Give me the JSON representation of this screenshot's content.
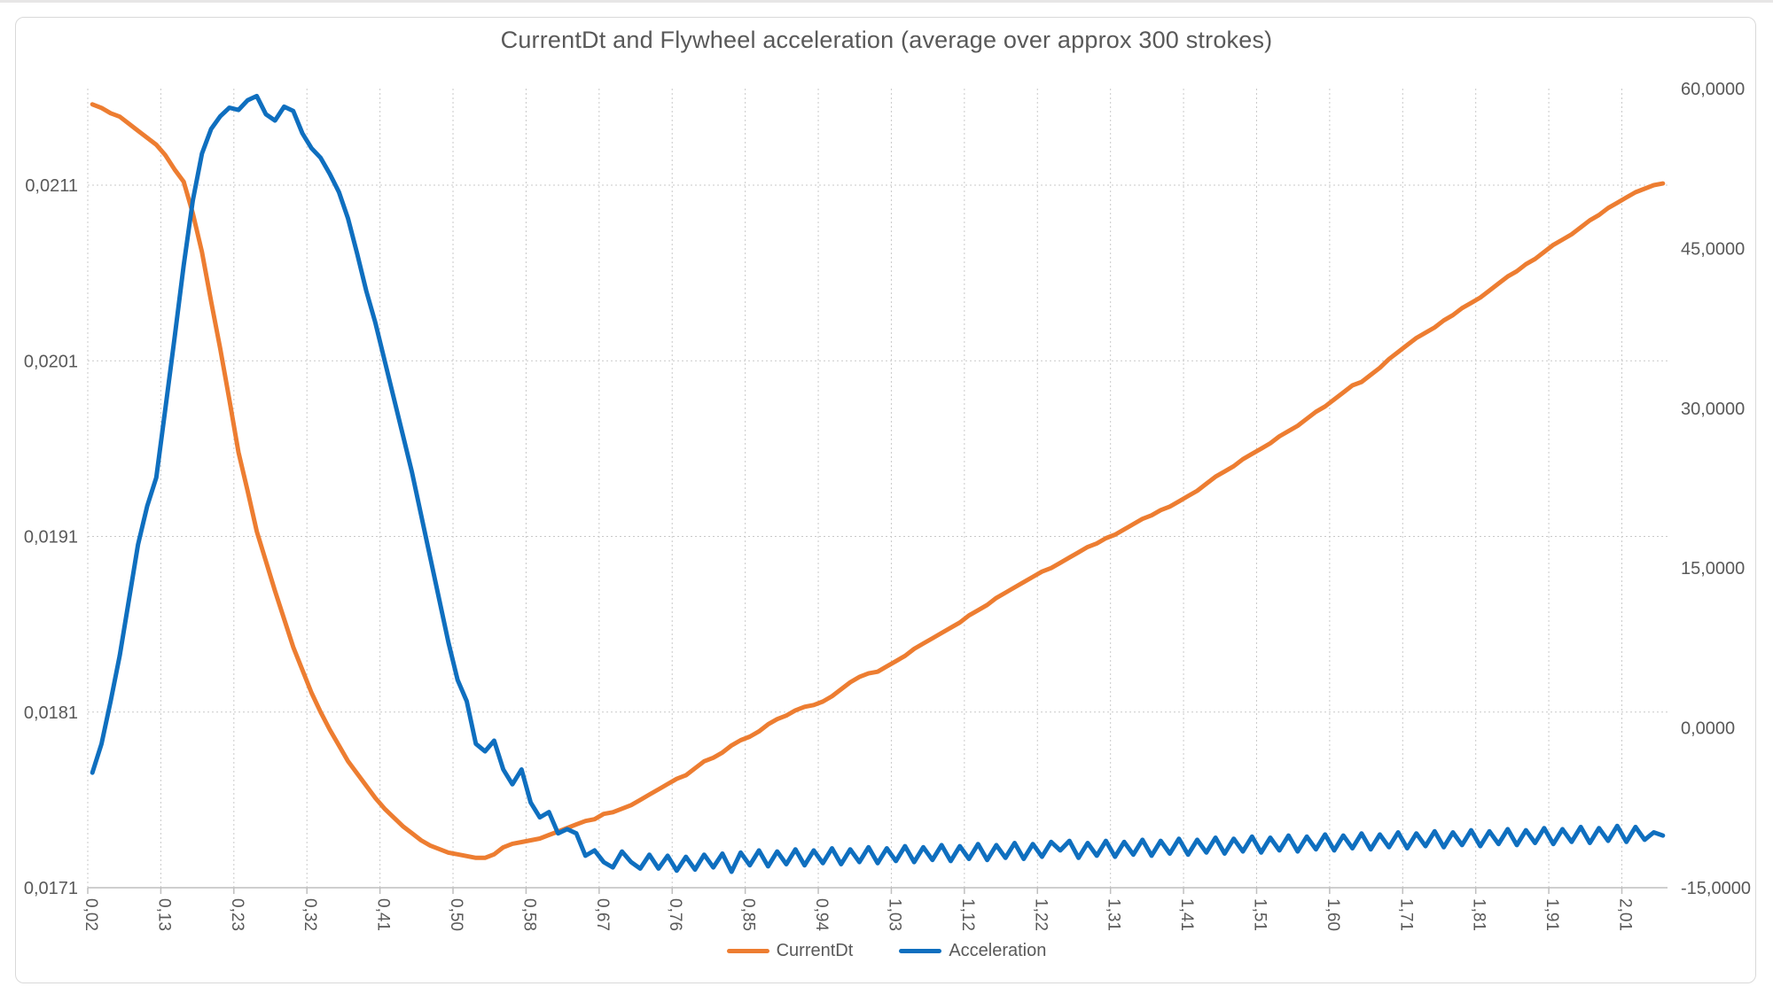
{
  "chart_data": {
    "type": "line",
    "title": "CurrentDt and Flywheel acceleration (average over approx 300 strokes)",
    "grid": "dotted",
    "legend_position": "bottom",
    "n_points": 173,
    "x_label_every_n_points": 8,
    "x_tick_labels": [
      "0,02",
      "0,13",
      "0,23",
      "0,32",
      "0,41",
      "0,50",
      "0,58",
      "0,67",
      "0,76",
      "0,85",
      "0,94",
      "1,03",
      "1,12",
      "1,22",
      "1,31",
      "1,41",
      "1,51",
      "1,60",
      "1,71",
      "1,81",
      "1,91",
      "2,01"
    ],
    "left_axis": {
      "min": 0.0171,
      "max": 0.02165,
      "major": 0.001,
      "tick_labels": [
        "0,0171",
        "0,0181",
        "0,0191",
        "0,0201",
        "0,0211"
      ]
    },
    "right_axis": {
      "min": -15,
      "max": 60,
      "major": 15,
      "tick_labels": [
        "-15,0000",
        "0,0000",
        "15,0000",
        "30,0000",
        "45,0000",
        "60,0000"
      ]
    },
    "series": [
      {
        "name": "CurrentDt",
        "axis": "left",
        "color": "#ED7D31",
        "values": [
          0.02156,
          0.02154,
          0.02151,
          0.02149,
          0.02145,
          0.02141,
          0.02137,
          0.02133,
          0.02127,
          0.02119,
          0.02112,
          0.02094,
          0.02072,
          0.02044,
          0.02017,
          0.01988,
          0.01958,
          0.01936,
          0.01913,
          0.01896,
          0.01879,
          0.01863,
          0.01847,
          0.01834,
          0.01821,
          0.0181,
          0.018,
          0.01791,
          0.01782,
          0.01775,
          0.01768,
          0.01761,
          0.01755,
          0.0175,
          0.01745,
          0.01741,
          0.01737,
          0.01734,
          0.01732,
          0.0173,
          0.01729,
          0.01728,
          0.01727,
          0.01727,
          0.01729,
          0.01733,
          0.01735,
          0.01736,
          0.01737,
          0.01738,
          0.0174,
          0.01742,
          0.01744,
          0.01746,
          0.01748,
          0.01749,
          0.01752,
          0.01753,
          0.01755,
          0.01757,
          0.0176,
          0.01763,
          0.01766,
          0.01769,
          0.01772,
          0.01774,
          0.01778,
          0.01782,
          0.01784,
          0.01787,
          0.01791,
          0.01794,
          0.01796,
          0.01799,
          0.01803,
          0.01806,
          0.01808,
          0.01811,
          0.01813,
          0.01814,
          0.01816,
          0.01819,
          0.01823,
          0.01827,
          0.0183,
          0.01832,
          0.01833,
          0.01836,
          0.01839,
          0.01842,
          0.01846,
          0.01849,
          0.01852,
          0.01855,
          0.01858,
          0.01861,
          0.01865,
          0.01868,
          0.01871,
          0.01875,
          0.01878,
          0.01881,
          0.01884,
          0.01887,
          0.0189,
          0.01892,
          0.01895,
          0.01898,
          0.01901,
          0.01904,
          0.01906,
          0.01909,
          0.01911,
          0.01914,
          0.01917,
          0.0192,
          0.01922,
          0.01925,
          0.01927,
          0.0193,
          0.01933,
          0.01936,
          0.0194,
          0.01944,
          0.01947,
          0.0195,
          0.01954,
          0.01957,
          0.0196,
          0.01963,
          0.01967,
          0.0197,
          0.01973,
          0.01977,
          0.01981,
          0.01984,
          0.01988,
          0.01992,
          0.01996,
          0.01998,
          0.02002,
          0.02006,
          0.02011,
          0.02015,
          0.02019,
          0.02023,
          0.02026,
          0.02029,
          0.02033,
          0.02036,
          0.0204,
          0.02043,
          0.02046,
          0.0205,
          0.02054,
          0.02058,
          0.02061,
          0.02065,
          0.02068,
          0.02072,
          0.02076,
          0.02079,
          0.02082,
          0.02086,
          0.0209,
          0.02093,
          0.02097,
          0.021,
          0.02103,
          0.02106,
          0.02108,
          0.0211,
          0.02111
        ]
      },
      {
        "name": "Acceleration",
        "axis": "right",
        "color": "#0F6FBF",
        "values": [
          -4.2,
          -1.5,
          2.5,
          6.8,
          12.0,
          17.2,
          20.8,
          23.5,
          30.0,
          36.6,
          43.4,
          49.5,
          53.9,
          56.2,
          57.4,
          58.2,
          58.0,
          58.9,
          59.3,
          57.6,
          57.0,
          58.3,
          57.9,
          55.8,
          54.4,
          53.5,
          52.0,
          50.3,
          47.8,
          44.5,
          41.0,
          38.0,
          34.5,
          31.0,
          27.5,
          24.0,
          20.0,
          16.0,
          12.0,
          8.0,
          4.5,
          2.5,
          -1.5,
          -2.2,
          -1.2,
          -3.9,
          -5.3,
          -3.9,
          -7.0,
          -8.4,
          -7.9,
          -9.9,
          -9.5,
          -9.9,
          -12.0,
          -11.5,
          -12.6,
          -13.1,
          -11.6,
          -12.6,
          -13.2,
          -11.9,
          -13.2,
          -12.0,
          -13.4,
          -12.1,
          -13.3,
          -11.9,
          -13.1,
          -11.8,
          -13.5,
          -11.7,
          -12.9,
          -11.5,
          -13.0,
          -11.6,
          -12.8,
          -11.4,
          -12.9,
          -11.5,
          -12.7,
          -11.3,
          -12.8,
          -11.4,
          -12.6,
          -11.2,
          -12.7,
          -11.3,
          -12.5,
          -11.1,
          -12.6,
          -11.2,
          -12.4,
          -11.0,
          -12.5,
          -11.1,
          -12.3,
          -10.9,
          -12.4,
          -11.0,
          -12.2,
          -10.8,
          -12.3,
          -10.9,
          -12.1,
          -10.7,
          -11.5,
          -10.6,
          -12.2,
          -10.8,
          -12.0,
          -10.6,
          -12.1,
          -10.7,
          -11.9,
          -10.5,
          -12.0,
          -10.6,
          -11.8,
          -10.4,
          -11.9,
          -10.5,
          -11.7,
          -10.3,
          -11.8,
          -10.4,
          -11.6,
          -10.2,
          -11.7,
          -10.3,
          -11.5,
          -10.1,
          -11.6,
          -10.2,
          -11.4,
          -10.0,
          -11.5,
          -10.1,
          -11.3,
          -9.9,
          -11.4,
          -10.0,
          -11.2,
          -9.8,
          -11.3,
          -9.9,
          -11.1,
          -9.7,
          -11.2,
          -9.8,
          -11.0,
          -9.6,
          -11.1,
          -9.7,
          -10.9,
          -9.5,
          -11.0,
          -9.6,
          -10.8,
          -9.4,
          -10.9,
          -9.5,
          -10.7,
          -9.3,
          -10.8,
          -9.4,
          -10.6,
          -9.2,
          -10.7,
          -9.3,
          -10.5,
          -9.8,
          -10.1
        ]
      }
    ]
  },
  "styles": {
    "text_color": "#595959",
    "gridline_color": "#c9c9c9",
    "axis_line_color": "#bfbfbf",
    "frame_border_color": "#d9d9d9"
  }
}
